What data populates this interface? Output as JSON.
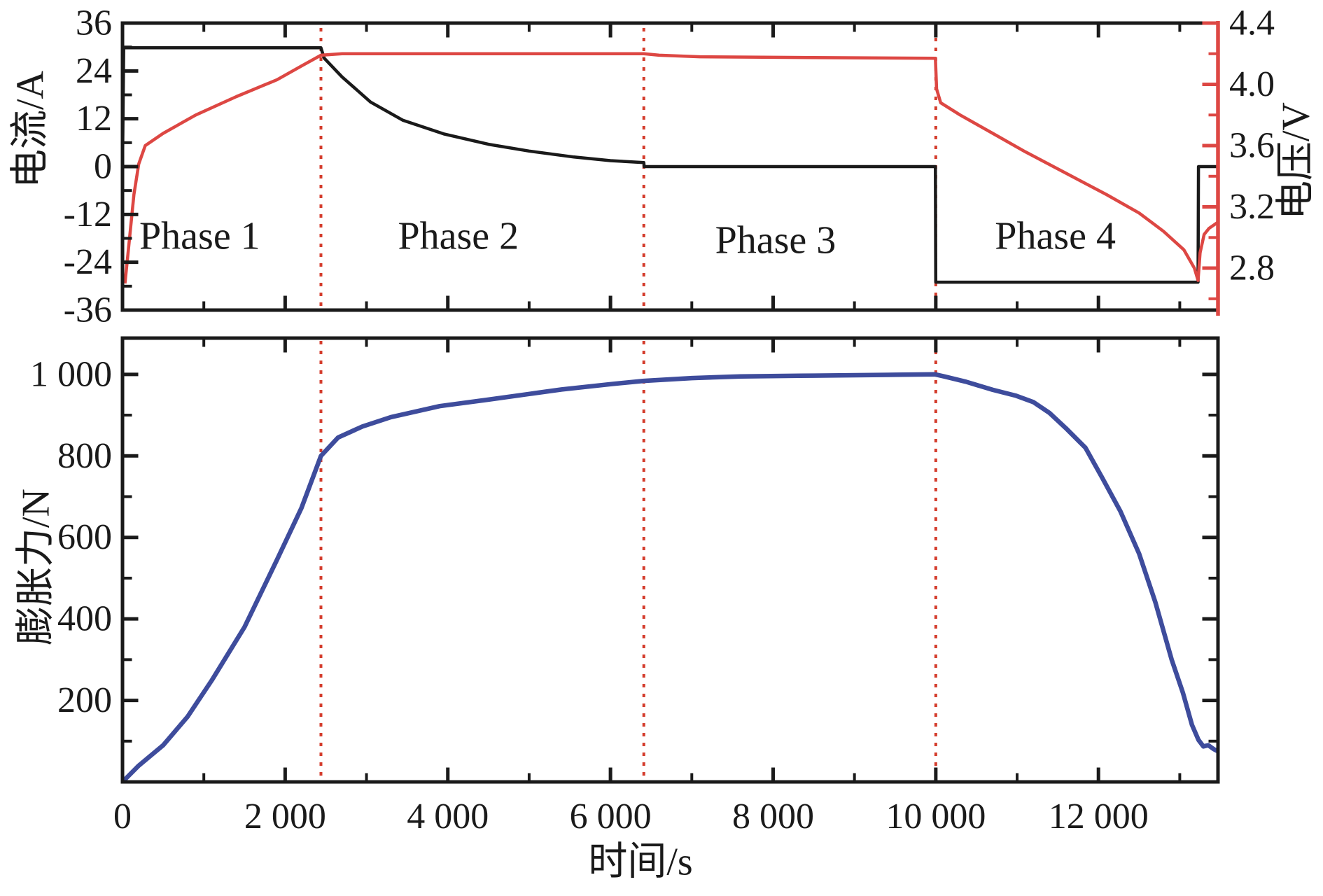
{
  "figure": {
    "description": "Battery charge-discharge cycle: current and voltage (top panel) and cell expansion force (bottom panel) versus time, divided into Phase 1-4 by red dotted lines"
  },
  "colors": {
    "current_line": "#1a1a1a",
    "voltage_line": "#dd4743",
    "force_line": "#3e4c9c",
    "phase_divider": "#d43c2c",
    "frame": "#1a1a1a",
    "background": "#ffffff"
  },
  "chart_data": [
    {
      "type": "line",
      "panel": "top",
      "x_range_s": [
        0,
        13470
      ],
      "ylabel_left": "电流/A",
      "y_left_range": [
        -36,
        36
      ],
      "y_left_tick_values": [
        36,
        24,
        12,
        0,
        -12,
        -24,
        -36
      ],
      "y_left_tick_labels": [
        "36",
        "24",
        "12",
        "0",
        "-12",
        "-24",
        "-36"
      ],
      "y_left_minor_ticks": [
        30,
        18,
        6,
        -6,
        -18,
        -30
      ],
      "ylabel_right": "电压/V",
      "y_right_range": [
        2.526,
        4.4
      ],
      "y_right_tick_values": [
        4.4,
        4.0,
        3.6,
        3.2,
        2.8
      ],
      "y_right_tick_labels": [
        "4.4",
        "4.0",
        "3.6",
        "3.2",
        "2.8"
      ],
      "y_right_minor_ticks": [
        4.2,
        3.8,
        3.4,
        3.0,
        2.6
      ],
      "phase_boundaries_s": [
        2440,
        6410,
        10000
      ],
      "annotations": [
        {
          "label": "Phase 1",
          "t_s": 950,
          "y_current": -17.5
        },
        {
          "label": "Phase 2",
          "t_s": 4130,
          "y_current": -17.5
        },
        {
          "label": "Phase 3",
          "t_s": 8030,
          "y_current": -18.5
        },
        {
          "label": "Phase 4",
          "t_s": 11470,
          "y_current": -17.5
        }
      ],
      "series": [
        {
          "name": "current",
          "axis": "left",
          "color_key": "current_line",
          "points": [
            [
              0,
              0
            ],
            [
              15,
              29.8
            ],
            [
              2440,
              29.8
            ],
            [
              2480,
              27.2
            ],
            [
              2700,
              22.5
            ],
            [
              3050,
              16.2
            ],
            [
              3450,
              11.6
            ],
            [
              3950,
              8.2
            ],
            [
              4500,
              5.6
            ],
            [
              5000,
              3.9
            ],
            [
              5550,
              2.4
            ],
            [
              6000,
              1.5
            ],
            [
              6410,
              1.0
            ],
            [
              6415,
              0
            ],
            [
              9995,
              0
            ],
            [
              10000,
              -29.0
            ],
            [
              13225,
              -29.0
            ],
            [
              13230,
              0
            ],
            [
              13470,
              0
            ]
          ]
        },
        {
          "name": "voltage",
          "axis": "right",
          "color_key": "voltage_line",
          "points": [
            [
              30,
              2.7
            ],
            [
              80,
              2.96
            ],
            [
              140,
              3.28
            ],
            [
              200,
              3.48
            ],
            [
              280,
              3.6
            ],
            [
              500,
              3.68
            ],
            [
              900,
              3.8
            ],
            [
              1400,
              3.92
            ],
            [
              1900,
              4.03
            ],
            [
              2200,
              4.12
            ],
            [
              2440,
              4.19
            ],
            [
              2700,
              4.2
            ],
            [
              6410,
              4.2
            ],
            [
              6600,
              4.19
            ],
            [
              7100,
              4.18
            ],
            [
              8500,
              4.175
            ],
            [
              9995,
              4.17
            ],
            [
              10010,
              3.97
            ],
            [
              10060,
              3.88
            ],
            [
              10300,
              3.8
            ],
            [
              10700,
              3.68
            ],
            [
              11100,
              3.56
            ],
            [
              11600,
              3.42
            ],
            [
              12100,
              3.28
            ],
            [
              12500,
              3.16
            ],
            [
              12800,
              3.04
            ],
            [
              13050,
              2.92
            ],
            [
              13180,
              2.8
            ],
            [
              13225,
              2.72
            ],
            [
              13250,
              2.9
            ],
            [
              13300,
              3.02
            ],
            [
              13360,
              3.06
            ],
            [
              13470,
              3.1
            ]
          ]
        }
      ]
    },
    {
      "type": "line",
      "panel": "bottom",
      "xlabel": "时间/s",
      "x_range_s": [
        0,
        13470
      ],
      "x_tick_values": [
        0,
        2000,
        4000,
        6000,
        8000,
        10000,
        12000
      ],
      "x_tick_labels": [
        "0",
        "2 000",
        "4 000",
        "6 000",
        "8 000",
        "10 000",
        "12 000"
      ],
      "x_minor_tick_values": [
        1000,
        3000,
        5000,
        7000,
        9000,
        11000,
        13000
      ],
      "ylabel": "膨胀力/N",
      "y_range": [
        0,
        1089
      ],
      "y_tick_values": [
        1000,
        800,
        600,
        400,
        200
      ],
      "y_tick_labels": [
        "1 000",
        "800",
        "600",
        "400",
        "200"
      ],
      "y_minor_tick_values": [
        100,
        300,
        500,
        700,
        900
      ],
      "phase_boundaries_s": [
        2440,
        6410,
        10000
      ],
      "series": [
        {
          "name": "expansion-force",
          "color_key": "force_line",
          "points": [
            [
              0,
              0
            ],
            [
              200,
              40
            ],
            [
              500,
              90
            ],
            [
              800,
              160
            ],
            [
              1100,
              250
            ],
            [
              1500,
              380
            ],
            [
              1900,
              545
            ],
            [
              2200,
              672
            ],
            [
              2440,
              800
            ],
            [
              2650,
              845
            ],
            [
              2950,
              872
            ],
            [
              3300,
              895
            ],
            [
              3900,
              922
            ],
            [
              4500,
              938
            ],
            [
              5000,
              952
            ],
            [
              5400,
              963
            ],
            [
              6000,
              976
            ],
            [
              6410,
              984
            ],
            [
              7000,
              991
            ],
            [
              7600,
              995
            ],
            [
              8500,
              997
            ],
            [
              9500,
              999
            ],
            [
              9990,
              1000
            ],
            [
              10100,
              995
            ],
            [
              10370,
              982
            ],
            [
              10700,
              962
            ],
            [
              10980,
              948
            ],
            [
              11200,
              932
            ],
            [
              11400,
              905
            ],
            [
              11600,
              868
            ],
            [
              11840,
              820
            ],
            [
              12050,
              745
            ],
            [
              12270,
              664
            ],
            [
              12500,
              560
            ],
            [
              12700,
              441
            ],
            [
              12900,
              300
            ],
            [
              13040,
              218
            ],
            [
              13150,
              140
            ],
            [
              13230,
              103
            ],
            [
              13290,
              87
            ],
            [
              13350,
              90
            ],
            [
              13420,
              80
            ],
            [
              13470,
              75
            ]
          ]
        }
      ]
    }
  ]
}
